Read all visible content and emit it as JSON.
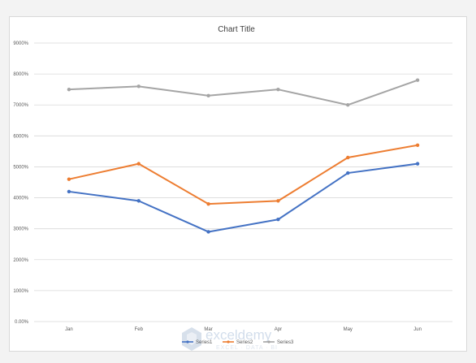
{
  "chart_data": {
    "type": "line",
    "title": "Chart Title",
    "categories": [
      "Jan",
      "Feb",
      "Mar",
      "Apr",
      "May",
      "Jun"
    ],
    "ylim": [
      0,
      9000
    ],
    "ytick_step": 1000,
    "ytick_labels": [
      "0.00%",
      "1000%",
      "2000%",
      "3000%",
      "4000%",
      "5000%",
      "6000%",
      "7000%",
      "8000%",
      "9000%"
    ],
    "grid": true,
    "legend": "bottom",
    "series": [
      {
        "name": "Series1",
        "color": "#4472c4",
        "values": [
          4200,
          3900,
          2900,
          3300,
          4800,
          5100
        ]
      },
      {
        "name": "Series2",
        "color": "#ed7d31",
        "values": [
          4600,
          5100,
          3800,
          3900,
          5300,
          5700
        ]
      },
      {
        "name": "Series3",
        "color": "#a5a5a5",
        "values": [
          7500,
          7600,
          7300,
          7500,
          7000,
          7800
        ]
      }
    ]
  },
  "watermark": {
    "brand": "exceldemy",
    "tagline": "EXCEL · DATA · BI"
  }
}
